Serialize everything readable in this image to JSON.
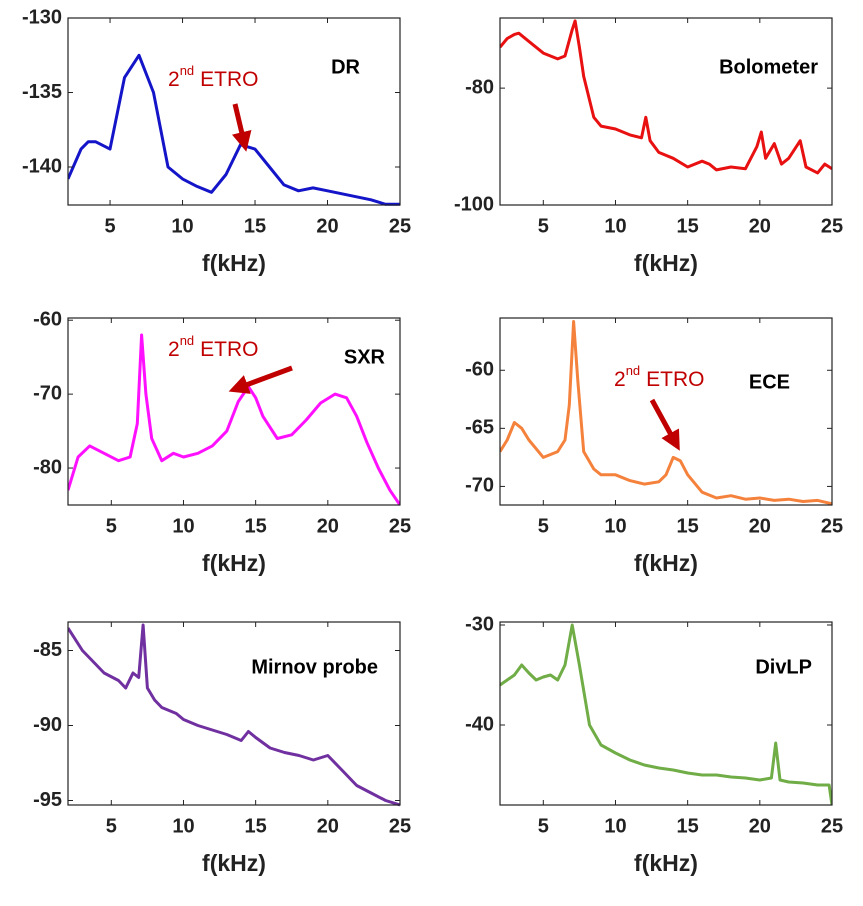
{
  "chart_data": [
    {
      "type": "line",
      "label": "DR",
      "color": "#1414c8",
      "xlabel": "f(kHz)",
      "x": [
        2.1,
        3,
        3.5,
        4,
        5,
        6,
        7,
        8,
        9,
        10,
        11,
        12,
        13,
        14,
        15,
        16,
        17,
        18,
        19,
        20,
        21,
        22,
        23,
        24,
        25
      ],
      "values": [
        -140.8,
        -138.8,
        -138.3,
        -138.3,
        -138.8,
        -134,
        -132.5,
        -135,
        -140,
        -140.8,
        -141.3,
        -141.7,
        -140.5,
        -138.5,
        -138.8,
        -140,
        -141.2,
        -141.6,
        -141.4,
        -141.6,
        -141.8,
        -142,
        -142.2,
        -142.5,
        -142.5
      ],
      "xlim": [
        2.1,
        25
      ],
      "ylim": [
        -142.55,
        -130
      ],
      "xticks": [
        5,
        10,
        15,
        20,
        25
      ],
      "yticks": [
        -130,
        -135,
        -140
      ],
      "annotation": {
        "text": "2",
        "superscript": "nd",
        "suffix": "ETRO"
      }
    },
    {
      "type": "line",
      "label": "Bolometer",
      "color": "#e81010",
      "xlabel": "f(kHz)",
      "x": [
        2,
        2.5,
        3,
        3.3,
        4,
        5,
        6,
        6.5,
        7,
        7.2,
        7.5,
        7.8,
        8.5,
        9,
        10,
        11,
        11.8,
        12.1,
        12.4,
        13,
        14,
        15,
        16,
        16.5,
        17,
        18,
        19,
        19.8,
        20.1,
        20.4,
        21,
        21.5,
        22,
        22.8,
        23.2,
        24,
        24.5,
        25
      ],
      "values": [
        -73,
        -71.5,
        -70.8,
        -70.6,
        -72,
        -74,
        -75,
        -74.5,
        -70,
        -68.5,
        -73,
        -78,
        -85,
        -86.5,
        -87,
        -88,
        -88.5,
        -85,
        -89,
        -91,
        -92,
        -93.5,
        -92.5,
        -93,
        -94,
        -93.5,
        -93.8,
        -90,
        -87.5,
        -92,
        -89.5,
        -93,
        -92,
        -89,
        -93.5,
        -94.5,
        -93,
        -93.8
      ],
      "xlim": [
        2,
        25
      ],
      "ylim": [
        -100,
        -68
      ],
      "xticks": [
        5,
        10,
        15,
        20,
        25
      ],
      "yticks": [
        -80,
        -100
      ]
    },
    {
      "type": "line",
      "label": "SXR",
      "color": "#ff10ff",
      "xlabel": "f(kHz)",
      "x": [
        2,
        2.7,
        3.5,
        4.5,
        5.5,
        6.3,
        6.8,
        7.1,
        7.4,
        7.8,
        8.5,
        9.3,
        10,
        11,
        12,
        13,
        13.8,
        14.5,
        15,
        15.5,
        16.5,
        17.5,
        18.5,
        19.5,
        20.5,
        21.3,
        22,
        22.7,
        23.5,
        24.3,
        25
      ],
      "values": [
        -83,
        -78.5,
        -77,
        -78,
        -79,
        -78.5,
        -74,
        -62,
        -70,
        -76,
        -79,
        -78,
        -78.5,
        -78,
        -77,
        -75,
        -71,
        -69,
        -70.5,
        -73,
        -76,
        -75.5,
        -73.5,
        -71.2,
        -70,
        -70.5,
        -73,
        -76.5,
        -80,
        -83,
        -85
      ],
      "xlim": [
        2,
        25
      ],
      "ylim": [
        -85,
        -59.7
      ],
      "xticks": [
        5,
        10,
        15,
        20,
        25
      ],
      "yticks": [
        -60,
        -70,
        -80
      ],
      "annotation": {
        "text": "2",
        "superscript": "nd",
        "suffix": "ETRO"
      }
    },
    {
      "type": "line",
      "label": "ECE",
      "color": "#f5823c",
      "xlabel": "f(kHz)",
      "x": [
        2,
        2.5,
        3,
        3.5,
        4,
        5,
        6,
        6.5,
        6.8,
        7.1,
        7.4,
        7.8,
        8.5,
        9,
        10,
        11,
        12,
        13,
        13.5,
        14,
        14.5,
        15,
        16,
        17,
        18,
        19,
        20,
        21,
        22,
        23,
        24,
        25
      ],
      "values": [
        -67,
        -66,
        -64.5,
        -65,
        -66,
        -67.5,
        -67,
        -66,
        -63,
        -55.8,
        -61,
        -67,
        -68.5,
        -69,
        -69,
        -69.5,
        -69.8,
        -69.6,
        -69,
        -67.5,
        -67.8,
        -69,
        -70.5,
        -71,
        -70.8,
        -71.1,
        -71,
        -71.2,
        -71.1,
        -71.3,
        -71.2,
        -71.5
      ],
      "xlim": [
        2,
        25
      ],
      "ylim": [
        -71.6,
        -55.5
      ],
      "xticks": [
        5,
        10,
        15,
        20,
        25
      ],
      "yticks": [
        -60,
        -65,
        -70
      ],
      "annotation": {
        "text": "2",
        "superscript": "nd",
        "suffix": "ETRO"
      }
    },
    {
      "type": "line",
      "label": "Mirnov probe",
      "color": "#7030a0",
      "xlabel": "f(kHz)",
      "x": [
        2,
        3,
        4,
        4.5,
        5.5,
        6,
        6.5,
        6.9,
        7.2,
        7.5,
        8,
        8.5,
        9.5,
        10,
        11,
        12,
        13,
        14,
        14.5,
        15,
        16,
        17,
        18,
        19,
        20,
        21,
        22,
        23,
        24,
        25
      ],
      "values": [
        -83.5,
        -85,
        -86,
        -86.5,
        -87,
        -87.5,
        -86.5,
        -86.8,
        -83.3,
        -87.5,
        -88.3,
        -88.8,
        -89.2,
        -89.6,
        -90,
        -90.3,
        -90.6,
        -91,
        -90.4,
        -90.8,
        -91.5,
        -91.8,
        -92,
        -92.3,
        -92,
        -93,
        -94,
        -94.5,
        -95,
        -95.3
      ],
      "xlim": [
        2,
        25
      ],
      "ylim": [
        -95.3,
        -83.1
      ],
      "xticks": [
        5,
        10,
        15,
        20,
        25
      ],
      "yticks": [
        -85,
        -90,
        -95
      ]
    },
    {
      "type": "line",
      "label": "DivLP",
      "color": "#70ad47",
      "xlabel": "f(kHz)",
      "x": [
        2,
        2.5,
        3,
        3.5,
        4,
        4.5,
        5,
        5.5,
        6,
        6.5,
        7,
        7.5,
        8.2,
        9,
        10,
        11,
        12,
        13,
        14,
        15,
        16,
        17,
        18,
        19,
        20,
        20.8,
        21.1,
        21.4,
        22,
        23,
        24,
        24.8,
        25
      ],
      "values": [
        -36,
        -35.5,
        -35,
        -34,
        -34.8,
        -35.5,
        -35.2,
        -35,
        -35.5,
        -34,
        -30,
        -34,
        -40,
        -42,
        -42.8,
        -43.5,
        -44,
        -44.3,
        -44.5,
        -44.8,
        -45,
        -45,
        -45.2,
        -45.3,
        -45.5,
        -45.3,
        -41.8,
        -45.5,
        -45.7,
        -45.8,
        -46,
        -46,
        -48
      ],
      "xlim": [
        2,
        25
      ],
      "ylim": [
        -48,
        -29.7
      ],
      "xticks": [
        5,
        10,
        15,
        20,
        25
      ],
      "yticks": [
        -30,
        -40
      ]
    }
  ]
}
